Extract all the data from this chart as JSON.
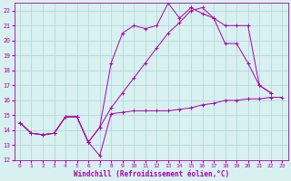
{
  "xlabel": "Windchill (Refroidissement éolien,°C)",
  "background_color": "#d8f0f0",
  "grid_color": "#aed4d4",
  "line_color": "#aa00aa",
  "xlim_min": -0.5,
  "xlim_max": 23.5,
  "ylim_min": 12,
  "ylim_max": 22.5,
  "xticks": [
    0,
    1,
    2,
    3,
    4,
    5,
    6,
    7,
    8,
    9,
    10,
    11,
    12,
    13,
    14,
    15,
    16,
    17,
    18,
    19,
    20,
    21,
    22,
    23
  ],
  "yticks": [
    12,
    13,
    14,
    15,
    16,
    17,
    18,
    19,
    20,
    21,
    22
  ],
  "series1_x": [
    0,
    1,
    2,
    3,
    4,
    5,
    6,
    7,
    8,
    9,
    10,
    11,
    12,
    13,
    14,
    15,
    16,
    17,
    18,
    19,
    20,
    21,
    22,
    23
  ],
  "series1_y": [
    14.5,
    13.8,
    13.7,
    13.8,
    14.9,
    14.9,
    13.2,
    12.3,
    15.1,
    15.2,
    15.3,
    15.3,
    15.3,
    15.3,
    15.4,
    15.5,
    15.7,
    15.8,
    16.0,
    16.0,
    16.1,
    16.1,
    16.2,
    16.2
  ],
  "series2_x": [
    0,
    1,
    2,
    3,
    4,
    5,
    6,
    7,
    8,
    9,
    10,
    11,
    12,
    13,
    14,
    15,
    16,
    17,
    18,
    19,
    20,
    21,
    22
  ],
  "series2_y": [
    14.5,
    13.8,
    13.7,
    13.8,
    14.9,
    14.9,
    13.2,
    14.2,
    18.5,
    20.5,
    21.0,
    20.8,
    21.0,
    22.5,
    21.5,
    22.2,
    21.8,
    21.5,
    21.0,
    21.0,
    21.0,
    17.0,
    16.5
  ],
  "series3_x": [
    0,
    1,
    2,
    3,
    4,
    5,
    6,
    7,
    8,
    9,
    10,
    11,
    12,
    13,
    14,
    15,
    16,
    17,
    18,
    19,
    20,
    21,
    22
  ],
  "series3_y": [
    14.5,
    13.8,
    13.7,
    13.8,
    14.9,
    14.9,
    13.2,
    14.2,
    15.5,
    16.5,
    17.5,
    18.5,
    19.5,
    20.5,
    21.2,
    22.0,
    22.2,
    21.5,
    19.8,
    19.8,
    18.5,
    17.0,
    16.5
  ]
}
